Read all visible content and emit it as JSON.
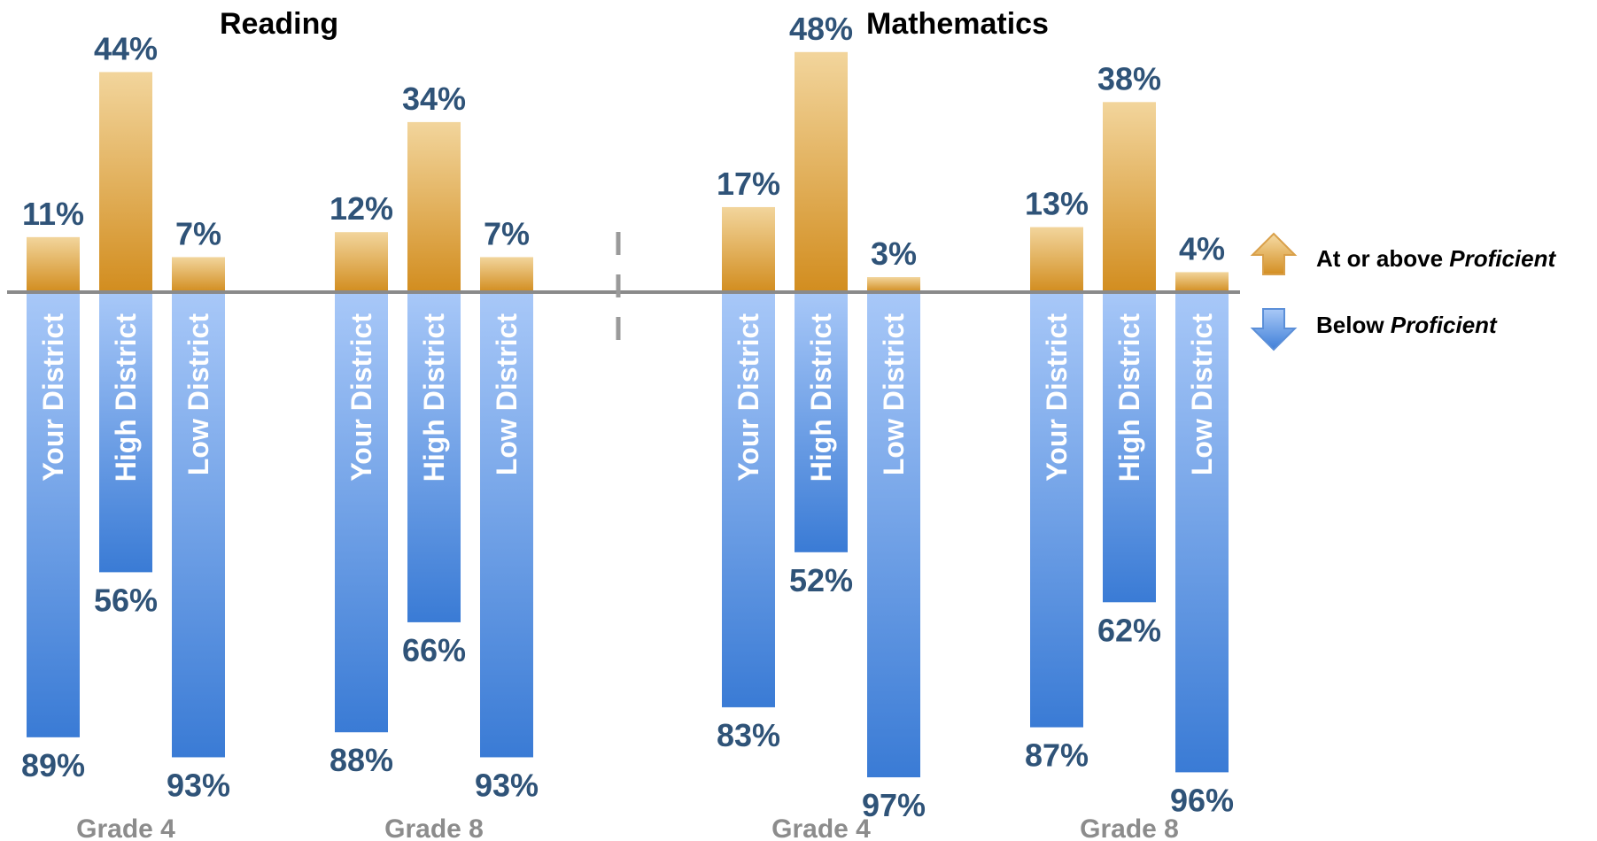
{
  "chart_data": {
    "type": "bar",
    "subjects": [
      {
        "title": "Reading",
        "groups": [
          {
            "grade": "Grade 4",
            "bars": [
              {
                "district": "Your District",
                "above": 11,
                "above_label": "11%",
                "below": 89,
                "below_label": "89%"
              },
              {
                "district": "High District",
                "above": 44,
                "above_label": "44%",
                "below": 56,
                "below_label": "56%"
              },
              {
                "district": "Low District",
                "above": 7,
                "above_label": "7%",
                "below": 93,
                "below_label": "93%"
              }
            ]
          },
          {
            "grade": "Grade 8",
            "bars": [
              {
                "district": "Your District",
                "above": 12,
                "above_label": "12%",
                "below": 88,
                "below_label": "88%"
              },
              {
                "district": "High District",
                "above": 34,
                "above_label": "34%",
                "below": 66,
                "below_label": "66%"
              },
              {
                "district": "Low District",
                "above": 7,
                "above_label": "7%",
                "below": 93,
                "below_label": "93%"
              }
            ]
          }
        ]
      },
      {
        "title": "Mathematics",
        "groups": [
          {
            "grade": "Grade 4",
            "bars": [
              {
                "district": "Your District",
                "above": 17,
                "above_label": "17%",
                "below": 83,
                "below_label": "83%"
              },
              {
                "district": "High District",
                "above": 48,
                "above_label": "48%",
                "below": 52,
                "below_label": "52%"
              },
              {
                "district": "Low District",
                "above": 3,
                "above_label": "3%",
                "below": 97,
                "below_label": "97%"
              }
            ]
          },
          {
            "grade": "Grade 8",
            "bars": [
              {
                "district": "Your District",
                "above": 13,
                "above_label": "13%",
                "below": 87,
                "below_label": "87%"
              },
              {
                "district": "High District",
                "above": 38,
                "above_label": "38%",
                "below": 62,
                "below_label": "62%"
              },
              {
                "district": "Low District",
                "above": 4,
                "above_label": "4%",
                "below": 96,
                "below_label": "96%"
              }
            ]
          }
        ]
      }
    ],
    "legend": [
      {
        "label_plain": "At or above ",
        "label_italic": "Proficient",
        "direction": "up",
        "color": "#d9a04a"
      },
      {
        "label_plain": "Below ",
        "label_italic": "Proficient",
        "direction": "down",
        "color": "#5b8fd8"
      }
    ],
    "legend_position": "right",
    "colors": {
      "above_top": "#f2d59c",
      "above_bottom": "#d28d1f",
      "below_top": "#a8c8f8",
      "below_bottom": "#3a7bd5",
      "value_text": "#2f5378",
      "grade_text": "#8c8c8c",
      "baseline": "#8a8a8a"
    },
    "grid": false
  }
}
